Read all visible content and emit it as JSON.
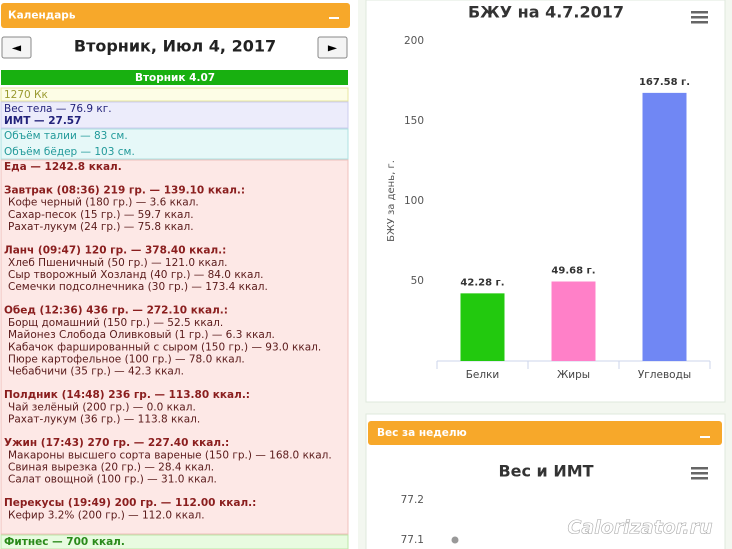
{
  "sidebar": {
    "title": "Календарь",
    "prev": "◄",
    "date": "Вторник, Июл 4, 2017",
    "next": "►",
    "day": "Вторник 4.07",
    "calories": "1270 Кк",
    "weight": "Вес тела — 76.9 кг.",
    "bmi": "ИМТ — 27.57",
    "waist": "Объём талии — 83 см.",
    "hips": "Объём бёдер — 103 см.",
    "food": "Еда — 1242.8 ккал.",
    "meals": [
      {
        "header": "Завтрак (08:36) 219 гр. — 139.10 ккал.:",
        "items": [
          "Кофе черный (180 гр.) — 3.6 ккал.",
          "Сахар-песок (15 гр.) — 59.7 ккал.",
          "Рахат-лукум (24 гр.) — 75.8 ккал."
        ]
      },
      {
        "header": "Ланч (09:47) 120 гр. — 378.40 ккал.:",
        "items": [
          "Хлеб Пшеничный (50 гр.) — 121.0 ккал.",
          "Сыр творожный Хозланд (40 гр.) — 84.0 ккал.",
          "Семечки подсолнечника (30 гр.) — 173.4 ккал."
        ]
      },
      {
        "header": "Обед (12:36) 436 гр. — 272.10 ккал.:",
        "items": [
          "Борщ домашний (150 гр.) — 52.5 ккал.",
          "Майонез Слобода Оливковый (1 гр.) — 6.3 ккал.",
          "Кабачок фаршированный с сыром (150 гр.) — 93.0 ккал.",
          "Пюре картофельное (100 гр.) — 78.0 ккал.",
          "Чебабчичи (35 гр.) — 42.3 ккал."
        ]
      },
      {
        "header": "Полдник (14:48) 236 гр. — 113.80 ккал.:",
        "items": [
          "Чай зелёный (200 гр.) — 0.0 ккал.",
          "Рахат-лукум (36 гр.) — 113.8 ккал."
        ]
      },
      {
        "header": "Ужин (17:43) 270 гр. — 227.40 ккал.:",
        "items": [
          "Макароны высшего сорта вареные (150 гр.) — 168.0 ккал.",
          "Свиная вырезка (20 гр.) — 28.4 ккал.",
          "Салат овощной (100 гр.) — 31.0 ккал."
        ]
      },
      {
        "header": "Перекусы (19:49) 200 гр. — 112.00 ккал.:",
        "items": [
          "Кефир 3.2% (200 гр.) — 112.0 ккал."
        ]
      }
    ],
    "fitness": "Фитнес — 700 ккал."
  },
  "panels": {
    "weekly_title": "Вес за неделю"
  },
  "watermark": "Calorizator.ru",
  "chart_data": [
    {
      "type": "bar",
      "title": "БЖУ на 4.7.2017",
      "y_label": "БЖУ за день, г.",
      "categories": [
        "Белки",
        "Жиры",
        "Углеводы"
      ],
      "series": [
        {
          "values": [
            42.28,
            49.68,
            167.58
          ],
          "value_labels": [
            "42.28 г.",
            "49.68 г.",
            "167.58 г."
          ],
          "colors": [
            "#22c90e",
            "#ff80c8",
            "#7087f4"
          ]
        }
      ],
      "ylim": [
        0,
        200
      ],
      "yticks": [
        50,
        100,
        150,
        200
      ],
      "grid": false
    },
    {
      "type": "line",
      "title": "Вес и ИМТ",
      "categories": [
        null
      ],
      "series": [
        {
          "values": [
            77.1
          ],
          "color": "#999999"
        }
      ],
      "ylim": [
        77.1,
        77.2
      ],
      "yticks": [
        77.1,
        77.2
      ],
      "grid": false
    }
  ]
}
